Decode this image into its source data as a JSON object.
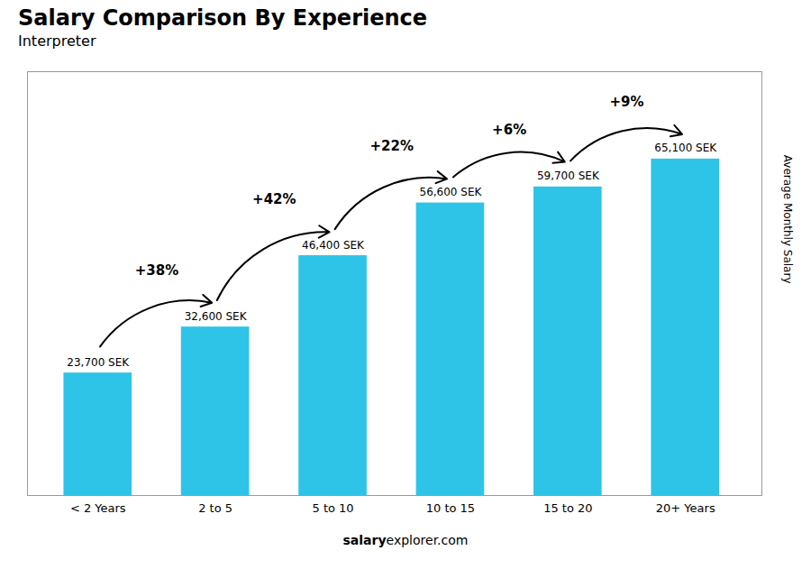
{
  "chart_data": {
    "type": "bar",
    "title": "Salary Comparison By Experience",
    "subtitle": "Interpreter",
    "ylabel": "Average Monthly Salary",
    "watermark": [
      "salary",
      "explorer.com"
    ],
    "categories": [
      "< 2 Years",
      "2 to 5",
      "5 to 10",
      "10 to 15",
      "15 to 20",
      "20+ Years"
    ],
    "values": [
      23700,
      32600,
      46400,
      56600,
      59700,
      65100
    ],
    "value_labels": [
      "23,700 SEK",
      "32,600 SEK",
      "46,400 SEK",
      "56,600 SEK",
      "59,700 SEK",
      "65,100 SEK"
    ],
    "data_labels": true,
    "annotations": [
      {
        "text": "+38%",
        "from": "< 2 Years",
        "to": "2 to 5"
      },
      {
        "text": "+42%",
        "from": "2 to 5",
        "to": "5 to 10"
      },
      {
        "text": "+22%",
        "from": "5 to 10",
        "to": "10 to 15"
      },
      {
        "text": "+6%",
        "from": "10 to 15",
        "to": "15 to 20"
      },
      {
        "text": "+9%",
        "from": "15 to 20",
        "to": "20+ Years"
      }
    ],
    "color": "#2ec4e8",
    "ylim": [
      0,
      82000
    ],
    "yticks": [],
    "grid": false,
    "tick_labels": "x"
  }
}
